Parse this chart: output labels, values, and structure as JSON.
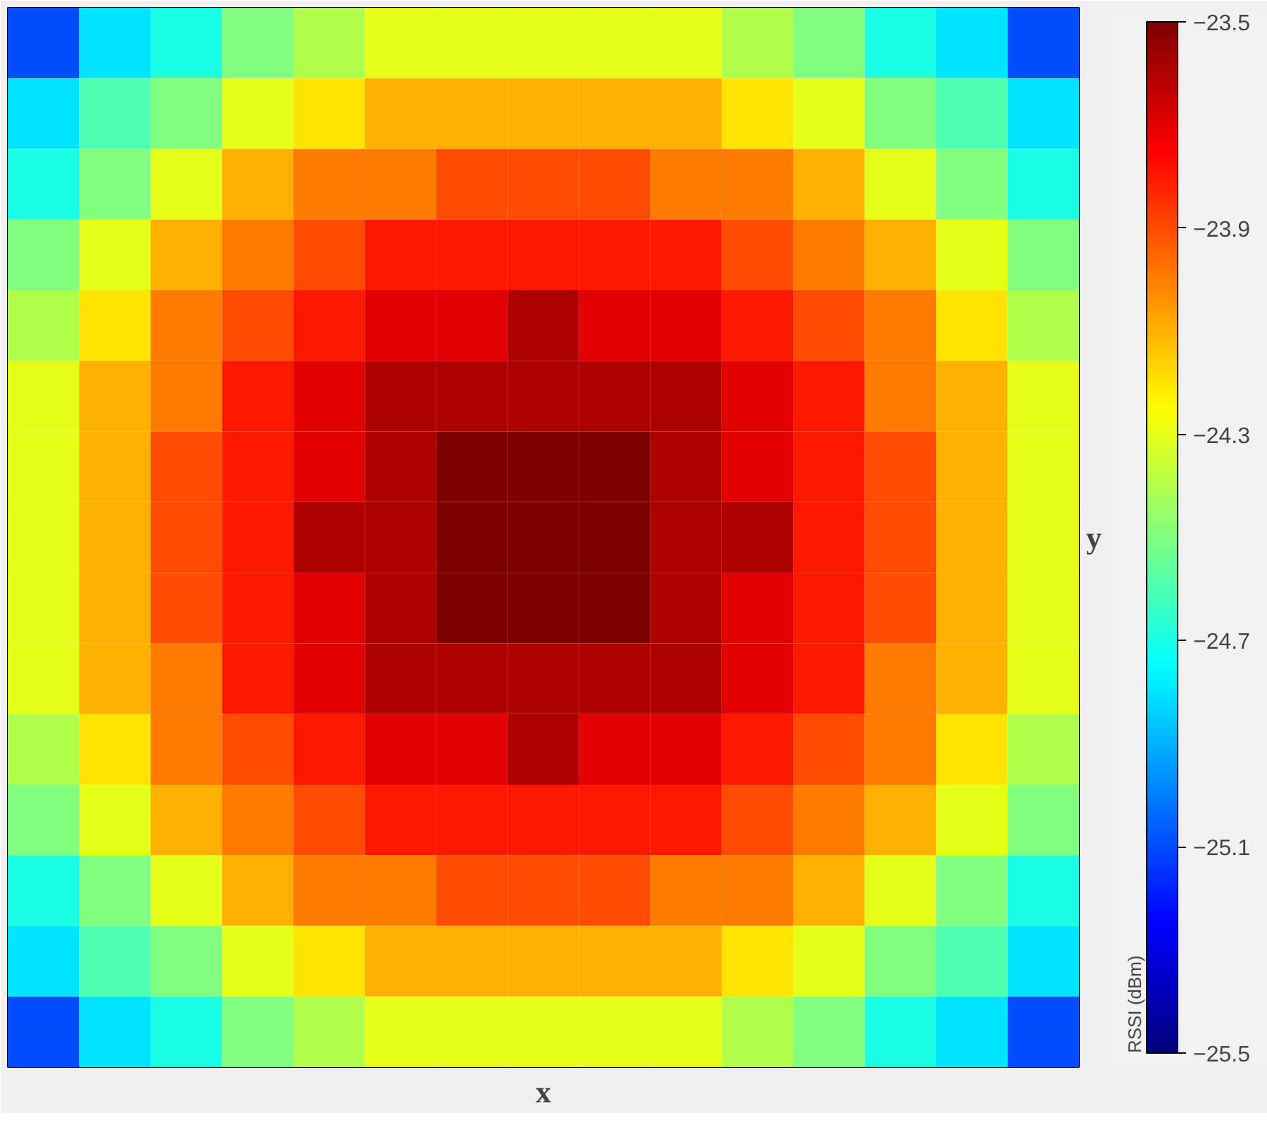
{
  "chart_data": {
    "type": "heatmap",
    "xlabel": "x",
    "ylabel": "y",
    "clabel": "RSSI (dBm)",
    "categories": [
      null,
      null,
      null,
      null,
      null,
      null,
      null,
      null,
      null,
      null,
      null,
      null,
      null,
      null,
      null
    ],
    "y_categories": [
      null,
      null,
      null,
      null,
      null,
      null,
      null,
      null,
      null,
      null,
      null,
      null,
      null,
      null,
      null
    ],
    "cells": [
      [
        -25.1,
        -24.8,
        -24.7,
        -24.5,
        -24.4,
        -24.3,
        -24.3,
        -24.3,
        -24.3,
        -24.3,
        -24.4,
        -24.5,
        -24.7,
        -24.8,
        -25.1
      ],
      [
        -24.8,
        -24.6,
        -24.5,
        -24.3,
        -24.2,
        -24.1,
        -24.1,
        -24.1,
        -24.1,
        -24.1,
        -24.2,
        -24.3,
        -24.5,
        -24.6,
        -24.8
      ],
      [
        -24.7,
        -24.5,
        -24.3,
        -24.1,
        -24.0,
        -24.0,
        -23.9,
        -23.9,
        -23.9,
        -24.0,
        -24.0,
        -24.1,
        -24.3,
        -24.5,
        -24.7
      ],
      [
        -24.5,
        -24.3,
        -24.1,
        -24.0,
        -23.9,
        -23.8,
        -23.8,
        -23.8,
        -23.8,
        -23.8,
        -23.9,
        -24.0,
        -24.1,
        -24.3,
        -24.5
      ],
      [
        -24.4,
        -24.2,
        -24.0,
        -23.9,
        -23.8,
        -23.7,
        -23.7,
        -23.6,
        -23.7,
        -23.7,
        -23.8,
        -23.9,
        -24.0,
        -24.2,
        -24.4
      ],
      [
        -24.3,
        -24.1,
        -24.0,
        -23.8,
        -23.7,
        -23.6,
        -23.6,
        -23.6,
        -23.6,
        -23.6,
        -23.7,
        -23.8,
        -24.0,
        -24.1,
        -24.3
      ],
      [
        -24.3,
        -24.1,
        -23.9,
        -23.8,
        -23.7,
        -23.6,
        -23.5,
        -23.5,
        -23.5,
        -23.6,
        -23.7,
        -23.8,
        -23.9,
        -24.1,
        -24.3
      ],
      [
        -24.3,
        -24.1,
        -23.9,
        -23.8,
        -23.6,
        -23.6,
        -23.5,
        -23.5,
        -23.5,
        -23.6,
        -23.6,
        -23.8,
        -23.9,
        -24.1,
        -24.3
      ],
      [
        -24.3,
        -24.1,
        -23.9,
        -23.8,
        -23.7,
        -23.6,
        -23.5,
        -23.5,
        -23.5,
        -23.6,
        -23.7,
        -23.8,
        -23.9,
        -24.1,
        -24.3
      ],
      [
        -24.3,
        -24.1,
        -24.0,
        -23.8,
        -23.7,
        -23.6,
        -23.6,
        -23.6,
        -23.6,
        -23.6,
        -23.7,
        -23.8,
        -24.0,
        -24.1,
        -24.3
      ],
      [
        -24.4,
        -24.2,
        -24.0,
        -23.9,
        -23.8,
        -23.7,
        -23.7,
        -23.6,
        -23.7,
        -23.7,
        -23.8,
        -23.9,
        -24.0,
        -24.2,
        -24.4
      ],
      [
        -24.5,
        -24.3,
        -24.1,
        -24.0,
        -23.9,
        -23.8,
        -23.8,
        -23.8,
        -23.8,
        -23.8,
        -23.9,
        -24.0,
        -24.1,
        -24.3,
        -24.5
      ],
      [
        -24.7,
        -24.5,
        -24.3,
        -24.1,
        -24.0,
        -24.0,
        -23.9,
        -23.9,
        -23.9,
        -24.0,
        -24.0,
        -24.1,
        -24.3,
        -24.5,
        -24.7
      ],
      [
        -24.8,
        -24.6,
        -24.5,
        -24.3,
        -24.2,
        -24.1,
        -24.1,
        -24.1,
        -24.1,
        -24.1,
        -24.2,
        -24.3,
        -24.5,
        -24.6,
        -24.8
      ],
      [
        -25.1,
        -24.8,
        -24.7,
        -24.5,
        -24.4,
        -24.3,
        -24.3,
        -24.3,
        -24.3,
        -24.3,
        -24.4,
        -24.5,
        -24.7,
        -24.8,
        -25.1
      ]
    ],
    "clim": [
      -25.5,
      -23.5
    ],
    "cticks": [
      -25.5,
      -25.1,
      -24.7,
      -24.3,
      -23.9,
      -23.5
    ],
    "tick_labels": false
  }
}
